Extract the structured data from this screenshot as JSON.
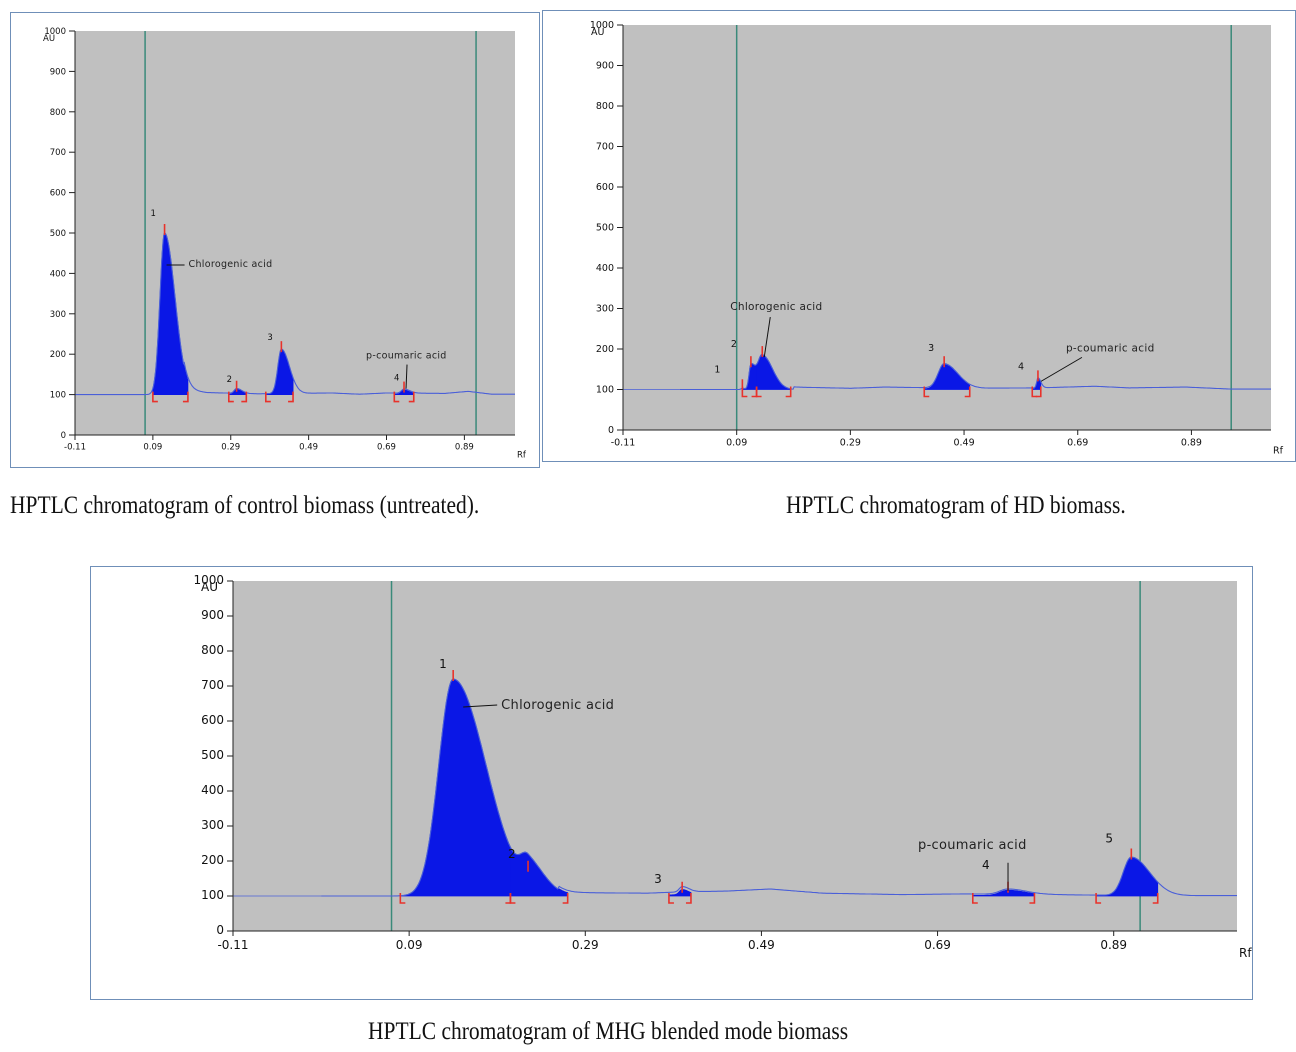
{
  "captions": {
    "c1": "HPTLC chromatogram of control biomass (untreated).",
    "c2": "HPTLC chromatogram of HD biomass.",
    "c3": "HPTLC chromatogram of MHG blended mode biomass"
  },
  "colors": {
    "background": "#c0c0c0",
    "fill": "#0a17e6",
    "marker": "#e8322b",
    "vline": "#3a8a7a",
    "baseline": "#4a5fd8"
  },
  "chart_data": [
    {
      "type": "area",
      "title": "HPTLC chromatogram of control biomass (untreated).",
      "ylabel": "AU",
      "xlabel": "Rf",
      "xlim": [
        -0.11,
        1.02
      ],
      "ylim": [
        0,
        1000
      ],
      "x_ticks": [
        "-0.11",
        "0.09",
        "0.29",
        "0.49",
        "0.69",
        "0.89"
      ],
      "y_ticks": [
        "0",
        "100",
        "200",
        "300",
        "400",
        "500",
        "600",
        "700",
        "800",
        "900",
        "1000"
      ],
      "baseline": 100,
      "start_rf": -0.11,
      "solvent_start": 0.07,
      "solvent_front": 0.92,
      "noise": [
        [
          0.17,
          112
        ],
        [
          0.23,
          105
        ],
        [
          0.36,
          102
        ],
        [
          0.55,
          104
        ],
        [
          0.62,
          101
        ],
        [
          0.69,
          104
        ],
        [
          0.84,
          103
        ],
        [
          0.9,
          108
        ],
        [
          0.96,
          101
        ],
        [
          1.02,
          101
        ]
      ],
      "peaks": [
        {
          "id": "1",
          "rf": 0.12,
          "height": 500,
          "range": [
            0.09,
            0.18
          ],
          "name": "Chlorogenic acid"
        },
        {
          "id": "2",
          "rf": 0.305,
          "height": 112,
          "range": [
            0.285,
            0.33
          ],
          "name": ""
        },
        {
          "id": "3",
          "rf": 0.42,
          "height": 210,
          "range": [
            0.38,
            0.45
          ],
          "name": ""
        },
        {
          "id": "4",
          "rf": 0.735,
          "height": 110,
          "range": [
            0.71,
            0.76
          ],
          "name": "p-coumaric acid"
        }
      ]
    },
    {
      "type": "area",
      "title": "HPTLC chromatogram of HD biomass.",
      "ylabel": "AU",
      "xlabel": "Rf",
      "xlim": [
        -0.11,
        1.03
      ],
      "ylim": [
        0,
        1000
      ],
      "x_ticks": [
        "-0.11",
        "0.09",
        "0.29",
        "0.49",
        "0.69",
        "0.89"
      ],
      "y_ticks": [
        "0",
        "100",
        "200",
        "300",
        "400",
        "500",
        "600",
        "700",
        "800",
        "900",
        "1000"
      ],
      "baseline": 100,
      "start_rf": -0.01,
      "solvent_start": 0.09,
      "solvent_front": 0.96,
      "noise": [
        [
          0.19,
          106
        ],
        [
          0.29,
          103
        ],
        [
          0.35,
          106
        ],
        [
          0.5,
          103
        ],
        [
          0.62,
          104
        ],
        [
          0.72,
          108
        ],
        [
          0.78,
          104
        ],
        [
          0.88,
          106
        ],
        [
          0.96,
          101
        ],
        [
          1.03,
          101
        ]
      ],
      "peaks": [
        {
          "id": "1",
          "rf": 0.1,
          "height": 103,
          "range": [],
          "name": ""
        },
        {
          "id": "2",
          "rf": 0.115,
          "height": 160,
          "range": [
            0.1,
            0.125
          ],
          "name": ""
        },
        {
          "id": "",
          "rf": 0.135,
          "height": 185,
          "range": [
            0.125,
            0.185
          ],
          "name": "Chlorogenic acid"
        },
        {
          "id": "3",
          "rf": 0.455,
          "height": 160,
          "range": [
            0.42,
            0.5
          ],
          "name": ""
        },
        {
          "id": "4",
          "rf": 0.62,
          "height": 125,
          "range": [
            0.61,
            0.625
          ],
          "name": "p-coumaric acid"
        }
      ]
    },
    {
      "type": "area",
      "title": "HPTLC chromatogram of MHG blended mode biomass",
      "ylabel": "AU",
      "xlabel": "Rf",
      "xlim": [
        -0.11,
        1.03
      ],
      "ylim": [
        0,
        1000
      ],
      "x_ticks": [
        "-0.11",
        "0.09",
        "0.29",
        "0.49",
        "0.69",
        "0.89"
      ],
      "y_ticks": [
        "0",
        "100",
        "200",
        "300",
        "400",
        "500",
        "600",
        "700",
        "800",
        "900",
        "1000"
      ],
      "baseline": 100,
      "start_rf": -0.01,
      "solvent_start": 0.07,
      "solvent_front": 0.92,
      "noise": [
        [
          0.26,
          110
        ],
        [
          0.36,
          108
        ],
        [
          0.4,
          112
        ],
        [
          0.45,
          114
        ],
        [
          0.5,
          120
        ],
        [
          0.56,
          108
        ],
        [
          0.65,
          104
        ],
        [
          0.72,
          106
        ],
        [
          0.82,
          104
        ],
        [
          0.92,
          101
        ],
        [
          1.03,
          101
        ]
      ],
      "peaks": [
        {
          "id": "1",
          "rf": 0.14,
          "height": 720,
          "range": [
            0.08,
            0.205
          ],
          "name": "Chlorogenic acid"
        },
        {
          "id": "2",
          "rf": 0.225,
          "height": 175,
          "range": [
            0.205,
            0.27
          ],
          "name": ""
        },
        {
          "id": "3",
          "rf": 0.4,
          "height": 115,
          "range": [
            0.385,
            0.41
          ],
          "name": ""
        },
        {
          "id": "4",
          "rf": 0.77,
          "height": 115,
          "range": [
            0.73,
            0.8
          ],
          "name": "p-coumaric acid"
        },
        {
          "id": "5",
          "rf": 0.91,
          "height": 210,
          "range": [
            0.87,
            0.94
          ],
          "name": ""
        }
      ]
    }
  ]
}
